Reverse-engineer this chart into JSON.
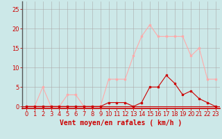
{
  "x": [
    0,
    1,
    2,
    3,
    4,
    5,
    6,
    7,
    8,
    9,
    10,
    11,
    12,
    13,
    14,
    15,
    16,
    17,
    18,
    19,
    20,
    21,
    22,
    23
  ],
  "y_mean": [
    0,
    0,
    0,
    0,
    0,
    0,
    0,
    0,
    0,
    0,
    1,
    1,
    1,
    0,
    1,
    5,
    5,
    8,
    6,
    3,
    4,
    2,
    1,
    0
  ],
  "y_gust": [
    0,
    0,
    5,
    0,
    0,
    3,
    3,
    0,
    0,
    0,
    7,
    7,
    7,
    13,
    18,
    21,
    18,
    18,
    18,
    18,
    13,
    15,
    7,
    7
  ],
  "mean_color": "#cc0000",
  "gust_color": "#ffaaaa",
  "bg_color": "#cce8e8",
  "grid_color": "#aaaaaa",
  "xlabel": "Vent moyen/en rafales ( km/h )",
  "yticks": [
    0,
    5,
    10,
    15,
    20,
    25
  ],
  "ylim": [
    -0.5,
    27
  ],
  "xlim": [
    -0.5,
    23.5
  ],
  "xlabel_fontsize": 7,
  "tick_fontsize": 6,
  "line_width": 0.8,
  "marker_size": 2
}
